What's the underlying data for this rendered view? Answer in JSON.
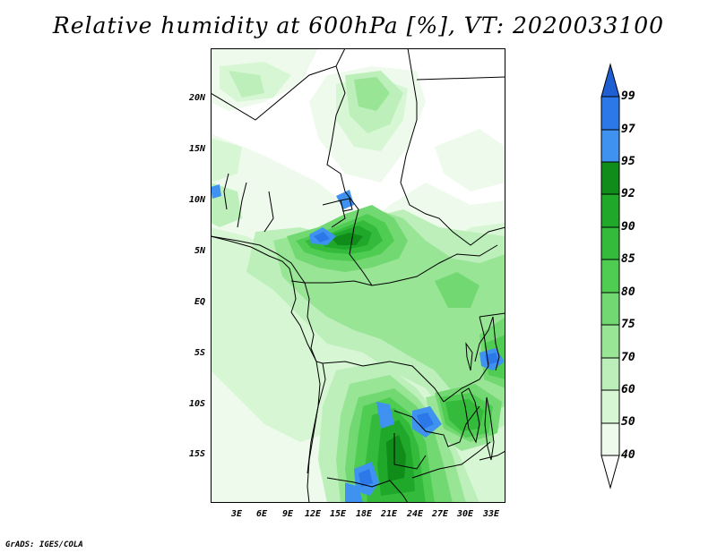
{
  "title": "Relative humidity at 600hPa [%], VT: 2020033100",
  "credit": "GrADS: IGES/COLA",
  "map": {
    "lon_range": [
      "0E",
      "34.5E"
    ],
    "lat_range": [
      "19S",
      "25N"
    ],
    "lat_labels": [
      "20N",
      "15N",
      "10N",
      "5N",
      "EQ",
      "5S",
      "10S",
      "15S"
    ],
    "lon_labels": [
      "3E",
      "6E",
      "9E",
      "12E",
      "15E",
      "18E",
      "21E",
      "24E",
      "27E",
      "30E",
      "33E"
    ]
  },
  "colorbar": {
    "labels": [
      "99",
      "97",
      "95",
      "92",
      "90",
      "85",
      "80",
      "75",
      "70",
      "60",
      "50",
      "40"
    ],
    "colors": [
      "#1e5fd4",
      "#2c78e8",
      "#3f92f0",
      "#0f8c1a",
      "#1fa82a",
      "#34bb3c",
      "#4fcc52",
      "#72d872",
      "#98e596",
      "#bdefbb",
      "#d7f6d4",
      "#eefbec",
      "#ffffff"
    ]
  }
}
